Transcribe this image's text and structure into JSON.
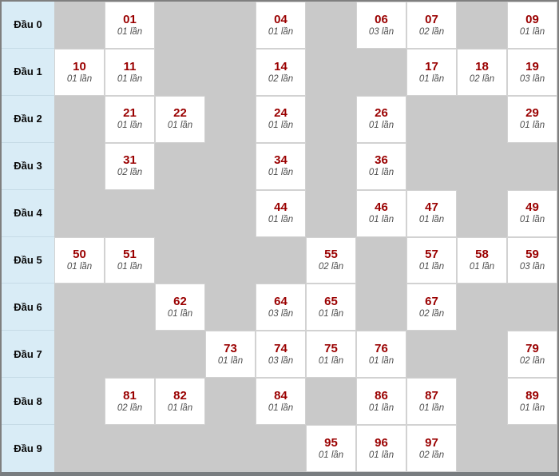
{
  "colors": {
    "label_bg": "#d9ecf6",
    "empty_cell_bg": "#c9c9c9",
    "number_color": "#9a0000",
    "count_color": "#4f4f4f",
    "outer_border": "#7f7f7f",
    "bottom_border": "#797d80",
    "cell_border": "#d2d2d2"
  },
  "table": {
    "row_label_prefix": "Đầu",
    "count_unit": "lần",
    "rows": [
      {
        "label": "Đầu 0",
        "cells": [
          null,
          {
            "number": "01",
            "count": "01 lần"
          },
          null,
          null,
          {
            "number": "04",
            "count": "01 lần"
          },
          null,
          {
            "number": "06",
            "count": "03 lần"
          },
          {
            "number": "07",
            "count": "02 lần"
          },
          null,
          {
            "number": "09",
            "count": "01 lần"
          }
        ]
      },
      {
        "label": "Đầu 1",
        "cells": [
          {
            "number": "10",
            "count": "01 lần"
          },
          {
            "number": "11",
            "count": "01 lần"
          },
          null,
          null,
          {
            "number": "14",
            "count": "02 lần"
          },
          null,
          null,
          {
            "number": "17",
            "count": "01 lần"
          },
          {
            "number": "18",
            "count": "02 lần"
          },
          {
            "number": "19",
            "count": "03 lần"
          }
        ]
      },
      {
        "label": "Đầu 2",
        "cells": [
          null,
          {
            "number": "21",
            "count": "01 lần"
          },
          {
            "number": "22",
            "count": "01 lần"
          },
          null,
          {
            "number": "24",
            "count": "01 lần"
          },
          null,
          {
            "number": "26",
            "count": "01 lần"
          },
          null,
          null,
          {
            "number": "29",
            "count": "01 lần"
          }
        ]
      },
      {
        "label": "Đầu 3",
        "cells": [
          null,
          {
            "number": "31",
            "count": "02 lần"
          },
          null,
          null,
          {
            "number": "34",
            "count": "01 lần"
          },
          null,
          {
            "number": "36",
            "count": "01 lần"
          },
          null,
          null,
          null
        ]
      },
      {
        "label": "Đầu 4",
        "cells": [
          null,
          null,
          null,
          null,
          {
            "number": "44",
            "count": "01 lần"
          },
          null,
          {
            "number": "46",
            "count": "01 lần"
          },
          {
            "number": "47",
            "count": "01 lần"
          },
          null,
          {
            "number": "49",
            "count": "01 lần"
          }
        ]
      },
      {
        "label": "Đầu 5",
        "cells": [
          {
            "number": "50",
            "count": "01 lần"
          },
          {
            "number": "51",
            "count": "01 lần"
          },
          null,
          null,
          null,
          {
            "number": "55",
            "count": "02 lần"
          },
          null,
          {
            "number": "57",
            "count": "01 lần"
          },
          {
            "number": "58",
            "count": "01 lần"
          },
          {
            "number": "59",
            "count": "03 lần"
          }
        ]
      },
      {
        "label": "Đầu 6",
        "cells": [
          null,
          null,
          {
            "number": "62",
            "count": "01 lần"
          },
          null,
          {
            "number": "64",
            "count": "03 lần"
          },
          {
            "number": "65",
            "count": "01 lần"
          },
          null,
          {
            "number": "67",
            "count": "02 lần"
          },
          null,
          null
        ]
      },
      {
        "label": "Đầu 7",
        "cells": [
          null,
          null,
          null,
          {
            "number": "73",
            "count": "01 lần"
          },
          {
            "number": "74",
            "count": "03 lần"
          },
          {
            "number": "75",
            "count": "01 lần"
          },
          {
            "number": "76",
            "count": "01 lần"
          },
          null,
          null,
          {
            "number": "79",
            "count": "02 lần"
          }
        ]
      },
      {
        "label": "Đầu 8",
        "cells": [
          null,
          {
            "number": "81",
            "count": "02 lần"
          },
          {
            "number": "82",
            "count": "01 lần"
          },
          null,
          {
            "number": "84",
            "count": "01 lần"
          },
          null,
          {
            "number": "86",
            "count": "01 lần"
          },
          {
            "number": "87",
            "count": "01 lần"
          },
          null,
          {
            "number": "89",
            "count": "01 lần"
          }
        ]
      },
      {
        "label": "Đầu 9",
        "cells": [
          null,
          null,
          null,
          null,
          null,
          {
            "number": "95",
            "count": "01 lần"
          },
          {
            "number": "96",
            "count": "01 lần"
          },
          {
            "number": "97",
            "count": "02 lần"
          },
          null,
          null
        ]
      }
    ]
  },
  "chart_data": {
    "type": "table",
    "title": "",
    "row_labels": [
      "Đầu 0",
      "Đầu 1",
      "Đầu 2",
      "Đầu 3",
      "Đầu 4",
      "Đầu 5",
      "Đầu 6",
      "Đầu 7",
      "Đầu 8",
      "Đầu 9"
    ],
    "columns_are": "last digit 0-9",
    "count_unit": "lần",
    "entries": [
      {
        "number": "01",
        "count": 1
      },
      {
        "number": "04",
        "count": 1
      },
      {
        "number": "06",
        "count": 3
      },
      {
        "number": "07",
        "count": 2
      },
      {
        "number": "09",
        "count": 1
      },
      {
        "number": "10",
        "count": 1
      },
      {
        "number": "11",
        "count": 1
      },
      {
        "number": "14",
        "count": 2
      },
      {
        "number": "17",
        "count": 1
      },
      {
        "number": "18",
        "count": 2
      },
      {
        "number": "19",
        "count": 3
      },
      {
        "number": "21",
        "count": 1
      },
      {
        "number": "22",
        "count": 1
      },
      {
        "number": "24",
        "count": 1
      },
      {
        "number": "26",
        "count": 1
      },
      {
        "number": "29",
        "count": 1
      },
      {
        "number": "31",
        "count": 2
      },
      {
        "number": "34",
        "count": 1
      },
      {
        "number": "36",
        "count": 1
      },
      {
        "number": "44",
        "count": 1
      },
      {
        "number": "46",
        "count": 1
      },
      {
        "number": "47",
        "count": 1
      },
      {
        "number": "49",
        "count": 1
      },
      {
        "number": "50",
        "count": 1
      },
      {
        "number": "51",
        "count": 1
      },
      {
        "number": "55",
        "count": 2
      },
      {
        "number": "57",
        "count": 1
      },
      {
        "number": "58",
        "count": 1
      },
      {
        "number": "59",
        "count": 3
      },
      {
        "number": "62",
        "count": 1
      },
      {
        "number": "64",
        "count": 3
      },
      {
        "number": "65",
        "count": 1
      },
      {
        "number": "67",
        "count": 2
      },
      {
        "number": "73",
        "count": 1
      },
      {
        "number": "74",
        "count": 3
      },
      {
        "number": "75",
        "count": 1
      },
      {
        "number": "76",
        "count": 1
      },
      {
        "number": "79",
        "count": 2
      },
      {
        "number": "81",
        "count": 2
      },
      {
        "number": "82",
        "count": 1
      },
      {
        "number": "84",
        "count": 1
      },
      {
        "number": "86",
        "count": 1
      },
      {
        "number": "87",
        "count": 1
      },
      {
        "number": "89",
        "count": 1
      },
      {
        "number": "95",
        "count": 1
      },
      {
        "number": "96",
        "count": 1
      },
      {
        "number": "97",
        "count": 2
      }
    ]
  }
}
